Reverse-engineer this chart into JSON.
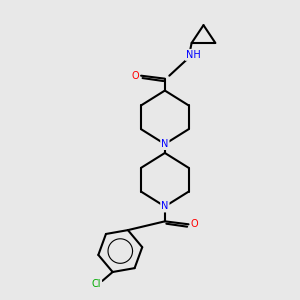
{
  "background_color": "#e8e8e8",
  "bond_color": "#000000",
  "atom_colors": {
    "N": "#0000ff",
    "O": "#ff0000",
    "Cl": "#00aa00",
    "C": "#000000",
    "H": "#444444"
  },
  "figsize": [
    3.0,
    3.0
  ],
  "dpi": 100
}
